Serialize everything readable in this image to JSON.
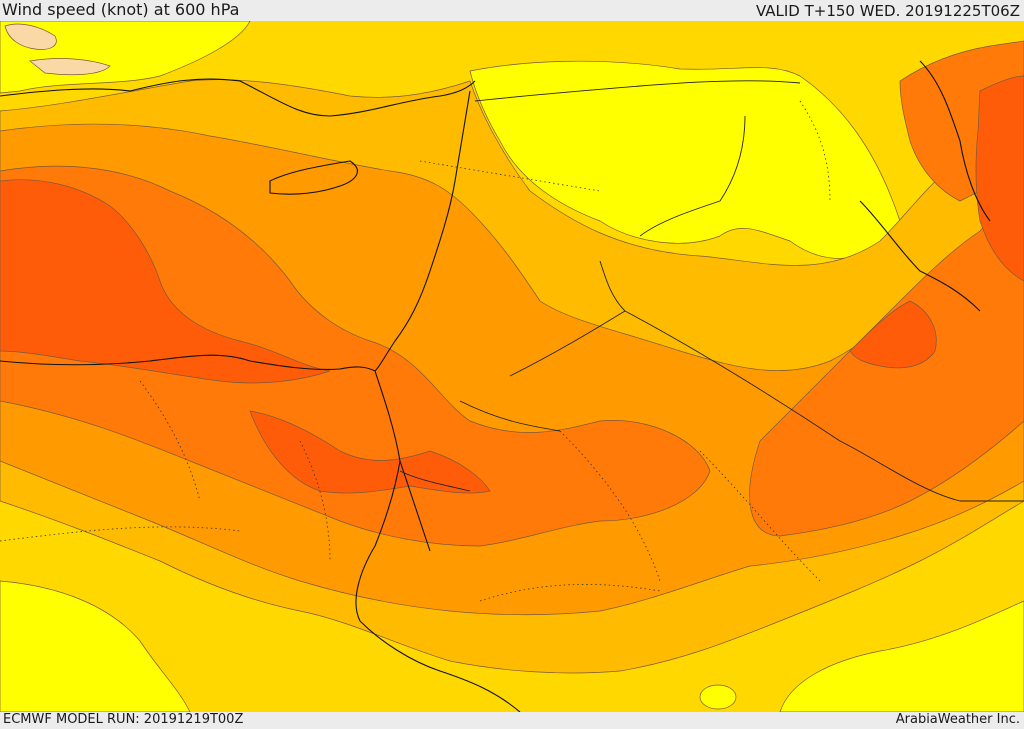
{
  "header": {
    "title": "Wind speed (knot) at 600 hPa",
    "valid": "VALID T+150 WED. 20191225T06Z"
  },
  "footer": {
    "model_run": "ECMWF MODEL RUN: 20191219T00Z",
    "credit": "ArabiaWeather Inc."
  },
  "colors": {
    "lightest": "#ffff00",
    "light": "#ffd800",
    "medium": "#ffbb00",
    "orange": "#ff9a00",
    "dark_orange": "#ff7a08",
    "deep": "#ff5c0a",
    "calm": "#fbd9a6",
    "contour": "#7a5a3a",
    "coastline": "#111111",
    "border": "#222222"
  }
}
